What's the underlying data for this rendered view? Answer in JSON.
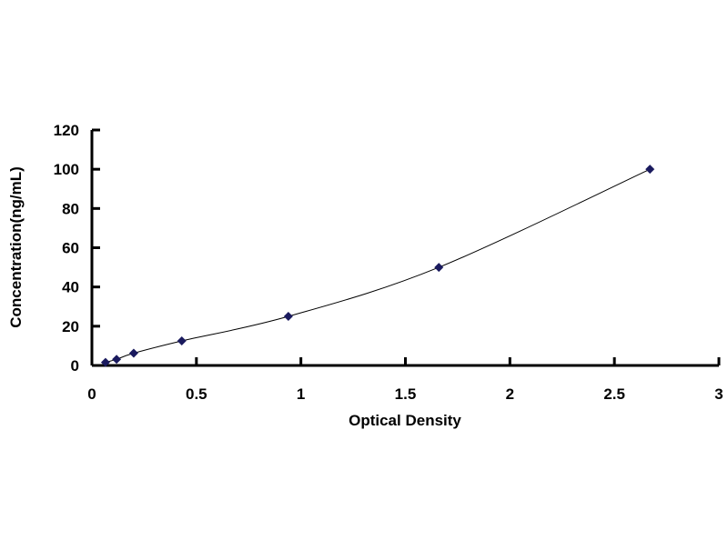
{
  "chart_data": {
    "type": "scatter",
    "title": "",
    "xlabel": "Optical Density",
    "ylabel": "Concentration(ng/mL)",
    "xlim": [
      0,
      3
    ],
    "ylim": [
      0,
      120
    ],
    "xticks": [
      "0",
      "0.5",
      "1",
      "1.5",
      "2",
      "2.5",
      "3"
    ],
    "yticks": [
      "0",
      "20",
      "40",
      "60",
      "80",
      "100",
      "120"
    ],
    "grid": false,
    "smooth_line": true,
    "marker": "diamond",
    "color": "#1a1a5e",
    "series": [
      {
        "x": [
          0.065,
          0.118,
          0.2,
          0.43,
          0.94,
          1.66,
          2.67
        ],
        "y": [
          1.56,
          3.13,
          6.25,
          12.5,
          25,
          50,
          100
        ]
      }
    ]
  }
}
